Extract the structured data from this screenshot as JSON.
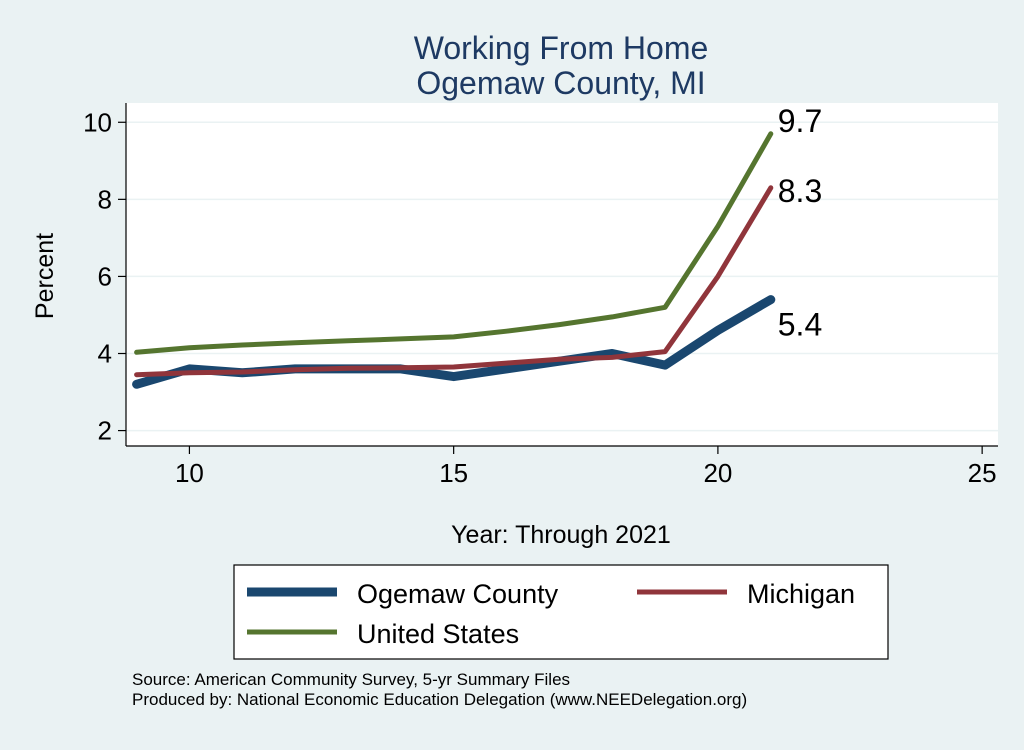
{
  "chart_data": {
    "type": "line",
    "title": "Working From Home",
    "subtitle": "Ogemaw County, MI",
    "xlabel": "Year: Through 2021",
    "ylabel": "Percent",
    "xlim": [
      8.8,
      25.3
    ],
    "ylim": [
      1.6,
      10.5
    ],
    "xticks": [
      10,
      15,
      20,
      25
    ],
    "yticks": [
      2,
      4,
      6,
      8,
      10
    ],
    "grid": true,
    "legend_position": "bottom",
    "series": [
      {
        "name": "Ogemaw County",
        "color": "#1a476f",
        "x": [
          9,
          10,
          11,
          12,
          13,
          14,
          15,
          16,
          17,
          18,
          19,
          20,
          21
        ],
        "y": [
          3.2,
          3.6,
          3.5,
          3.6,
          3.6,
          3.6,
          3.4,
          3.6,
          3.8,
          4.0,
          3.7,
          4.6,
          5.4
        ],
        "end_label": "5.4"
      },
      {
        "name": "Michigan",
        "color": "#90353b",
        "x": [
          9,
          10,
          11,
          12,
          13,
          14,
          15,
          16,
          17,
          18,
          19,
          20,
          21
        ],
        "y": [
          3.45,
          3.5,
          3.52,
          3.58,
          3.62,
          3.63,
          3.65,
          3.75,
          3.85,
          3.9,
          4.05,
          6.0,
          8.3
        ],
        "end_label": "8.3"
      },
      {
        "name": "United States",
        "color": "#55752f",
        "x": [
          9,
          10,
          11,
          12,
          13,
          14,
          15,
          16,
          17,
          18,
          19,
          20,
          21
        ],
        "y": [
          4.03,
          4.15,
          4.22,
          4.28,
          4.33,
          4.38,
          4.43,
          4.58,
          4.75,
          4.95,
          5.2,
          7.3,
          9.7
        ],
        "end_label": "9.7"
      }
    ]
  },
  "footer": {
    "source": "Source: American Community Survey, 5-yr Summary Files",
    "produced_by": "Produced by: National Economic Education Delegation (www.NEEDelegation.org)"
  }
}
